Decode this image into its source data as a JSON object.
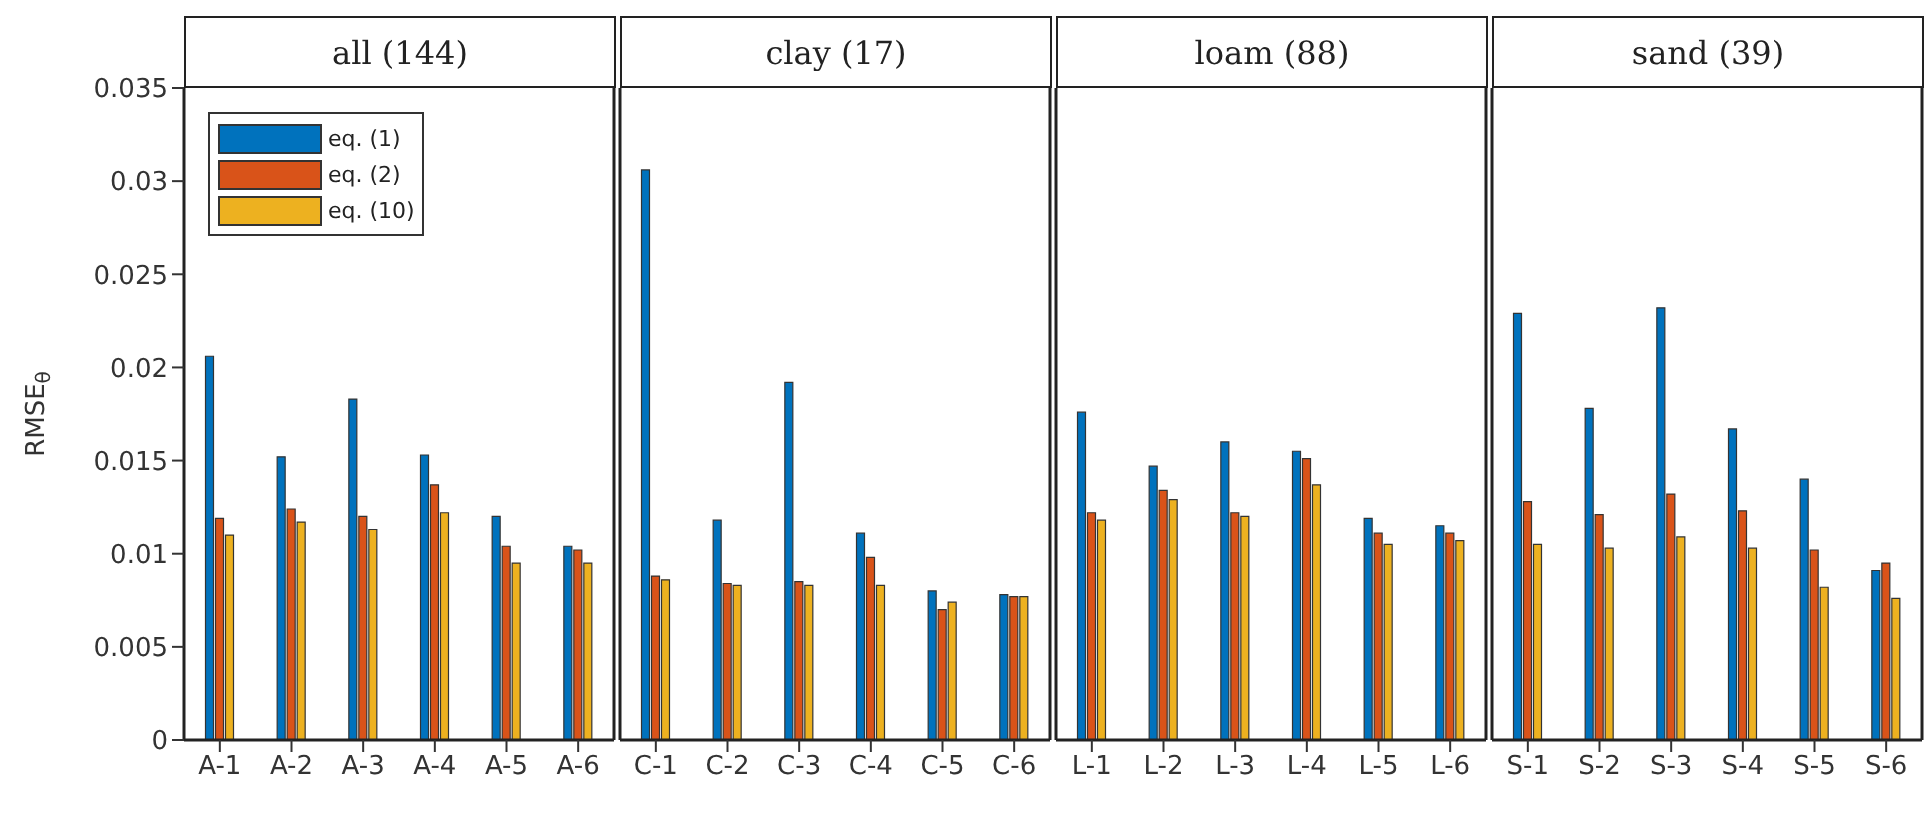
{
  "chart_data": [
    {
      "type": "bar",
      "title": "all (144)",
      "ylabel": "RMSE$_{θ}$",
      "categories": [
        "A-1",
        "A-2",
        "A-3",
        "A-4",
        "A-5",
        "A-6"
      ],
      "ylim": [
        0,
        0.035
      ],
      "yticks": [
        0,
        0.005,
        0.01,
        0.015,
        0.02,
        0.025,
        0.03,
        0.035
      ],
      "legend": "top left",
      "series": [
        {
          "name": "eq. (1)",
          "color": "#0072bd",
          "values": [
            0.0206,
            0.0152,
            0.0183,
            0.0153,
            0.012,
            0.0104
          ]
        },
        {
          "name": "eq. (2)",
          "color": "#d95319",
          "values": [
            0.0119,
            0.0124,
            0.012,
            0.0137,
            0.0104,
            0.0102
          ]
        },
        {
          "name": "eq. (10)",
          "color": "#edb120",
          "values": [
            0.011,
            0.0117,
            0.0113,
            0.0122,
            0.0095,
            0.0095
          ]
        }
      ]
    },
    {
      "type": "bar",
      "title": "clay (17)",
      "categories": [
        "C-1",
        "C-2",
        "C-3",
        "C-4",
        "C-5",
        "C-6"
      ],
      "ylim": [
        0,
        0.035
      ],
      "yticks": [
        0,
        0.005,
        0.01,
        0.015,
        0.02,
        0.025,
        0.03,
        0.035
      ],
      "tick_labels": "x",
      "series": [
        {
          "color": "#0072bd",
          "values": [
            0.0306,
            0.0118,
            0.0192,
            0.0111,
            0.008,
            0.0078
          ]
        },
        {
          "color": "#d95319",
          "values": [
            0.0088,
            0.0084,
            0.0085,
            0.0098,
            0.007,
            0.0077
          ]
        },
        {
          "color": "#edb120",
          "values": [
            0.0086,
            0.0083,
            0.0083,
            0.0083,
            0.0074,
            0.0077
          ]
        }
      ]
    },
    {
      "type": "bar",
      "title": "loam (88)",
      "categories": [
        "L-1",
        "L-2",
        "L-3",
        "L-4",
        "L-5",
        "L-6"
      ],
      "ylim": [
        0,
        0.035
      ],
      "yticks": [
        0,
        0.005,
        0.01,
        0.015,
        0.02,
        0.025,
        0.03,
        0.035
      ],
      "tick_labels": "x",
      "series": [
        {
          "color": "#0072bd",
          "values": [
            0.0176,
            0.0147,
            0.016,
            0.0155,
            0.0119,
            0.0115
          ]
        },
        {
          "color": "#d95319",
          "values": [
            0.0122,
            0.0134,
            0.0122,
            0.0151,
            0.0111,
            0.0111
          ]
        },
        {
          "color": "#edb120",
          "values": [
            0.0118,
            0.0129,
            0.012,
            0.0137,
            0.0105,
            0.0107
          ]
        }
      ]
    },
    {
      "type": "bar",
      "title": "sand (39)",
      "categories": [
        "S-1",
        "S-2",
        "S-3",
        "S-4",
        "S-5",
        "S-6"
      ],
      "ylim": [
        0,
        0.035
      ],
      "yticks": [
        0,
        0.005,
        0.01,
        0.015,
        0.02,
        0.025,
        0.03,
        0.035
      ],
      "tick_labels": "x",
      "series": [
        {
          "color": "#0072bd",
          "values": [
            0.0229,
            0.0178,
            0.0232,
            0.0167,
            0.014,
            0.0091
          ]
        },
        {
          "color": "#d95319",
          "values": [
            0.0128,
            0.0121,
            0.0132,
            0.0123,
            0.0102,
            0.0095
          ]
        },
        {
          "color": "#edb120",
          "values": [
            0.0105,
            0.0103,
            0.0109,
            0.0103,
            0.0082,
            0.0076
          ]
        }
      ]
    }
  ]
}
